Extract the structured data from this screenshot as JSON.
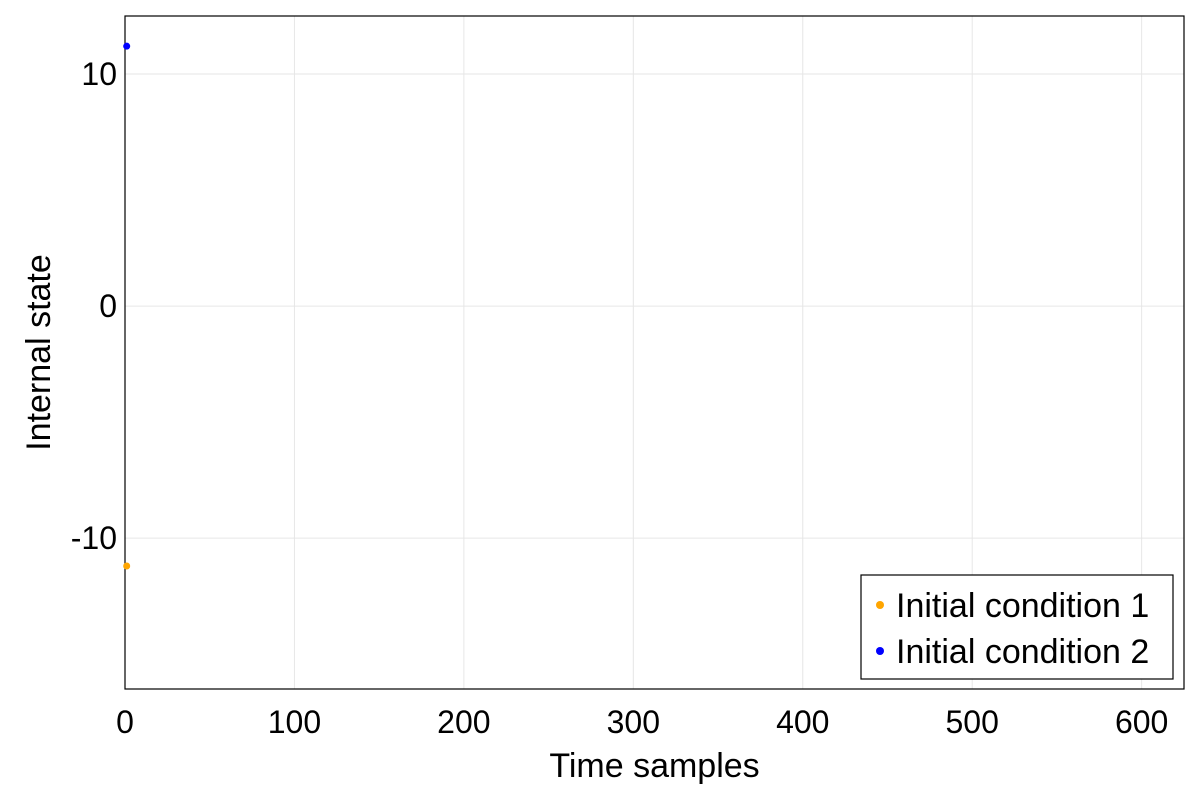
{
  "chart_data": {
    "type": "scatter",
    "title": "",
    "xlabel": "Time samples",
    "ylabel": "Internal state",
    "xlim": [
      0,
      625
    ],
    "ylim": [
      -16.5,
      12.5
    ],
    "xticks": [
      0,
      100,
      200,
      300,
      400,
      500,
      600
    ],
    "yticks": [
      10,
      0,
      -10
    ],
    "grid": true,
    "legend_position": "bottom-right",
    "series": [
      {
        "name": "Initial condition 1",
        "color": "#FFA500",
        "points": [
          [
            1,
            -11.2
          ]
        ]
      },
      {
        "name": "Initial condition 2",
        "color": "#0000FF",
        "points": [
          [
            1,
            11.2
          ]
        ]
      }
    ]
  }
}
